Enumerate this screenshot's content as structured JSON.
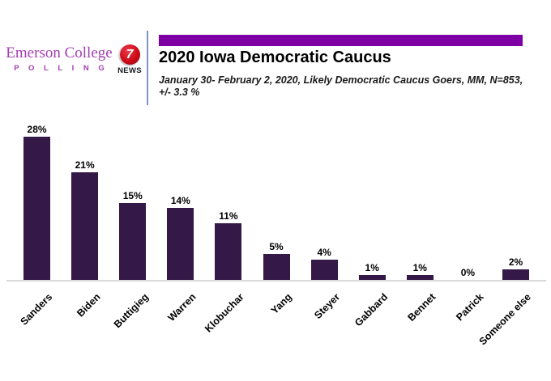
{
  "branding": {
    "org_name": "Emerson College",
    "org_sub": "P O L L I N G",
    "org_color": "#A23FB0",
    "news_logo": {
      "number": "7",
      "label": "NEWS",
      "circle_color": "#CC0A16"
    }
  },
  "header": {
    "title": "2020 Iowa Democratic Caucus",
    "subtitle_line1": "January 30- February 2, 2020, Likely Democratic Caucus Goers, MM,  N=853,",
    "subtitle_line2": "+/- 3.3 %",
    "accent_color": "#7E00A5"
  },
  "chart_data": {
    "type": "bar",
    "title": "2020 Iowa Democratic Caucus",
    "categories": [
      "Sanders",
      "Biden",
      "Buttigieg",
      "Warren",
      "Klobuchar",
      "Yang",
      "Steyer",
      "Gabbard",
      "Bennet",
      "Patrick",
      "Someone else"
    ],
    "values": [
      28,
      21,
      15,
      14,
      11,
      5,
      4,
      1,
      1,
      0,
      2
    ],
    "value_labels": [
      "28%",
      "21%",
      "15%",
      "14%",
      "11%",
      "5%",
      "4%",
      "1%",
      "1%",
      "0%",
      "2%"
    ],
    "xlabel": "",
    "ylabel": "",
    "ylim": [
      0,
      30
    ],
    "grid": false,
    "legend": false,
    "bar_color": "#341847",
    "axis_line_color": "#D9D9D9",
    "value_label_position": "above",
    "category_label_rotation_deg": 45
  }
}
